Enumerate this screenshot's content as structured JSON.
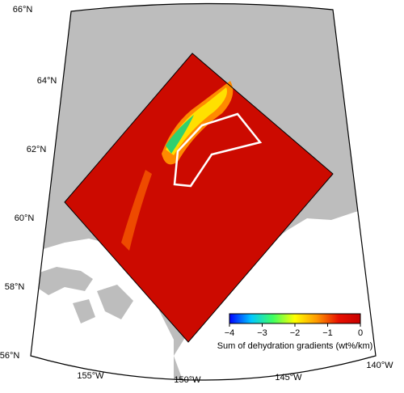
{
  "map": {
    "lat_labels": [
      "66°N",
      "64°N",
      "62°N",
      "60°N",
      "58°N",
      "56°N"
    ],
    "lon_labels": [
      "155°W",
      "150°W",
      "145°W",
      "140°W"
    ],
    "colorbar": {
      "label": "Sum of dehydration gradients (wt%/km)",
      "range": [
        -4,
        0
      ],
      "ticks": [
        {
          "value": -4,
          "label": "−4"
        },
        {
          "value": -3,
          "label": "−3"
        },
        {
          "value": -2,
          "label": "−2"
        },
        {
          "value": -1,
          "label": "−1"
        },
        0
      ],
      "colors": [
        "#0000ff",
        "#00c8ff",
        "#40ff60",
        "#ffff00",
        "#ff9900",
        "#e81000",
        "#c80000"
      ]
    }
  }
}
